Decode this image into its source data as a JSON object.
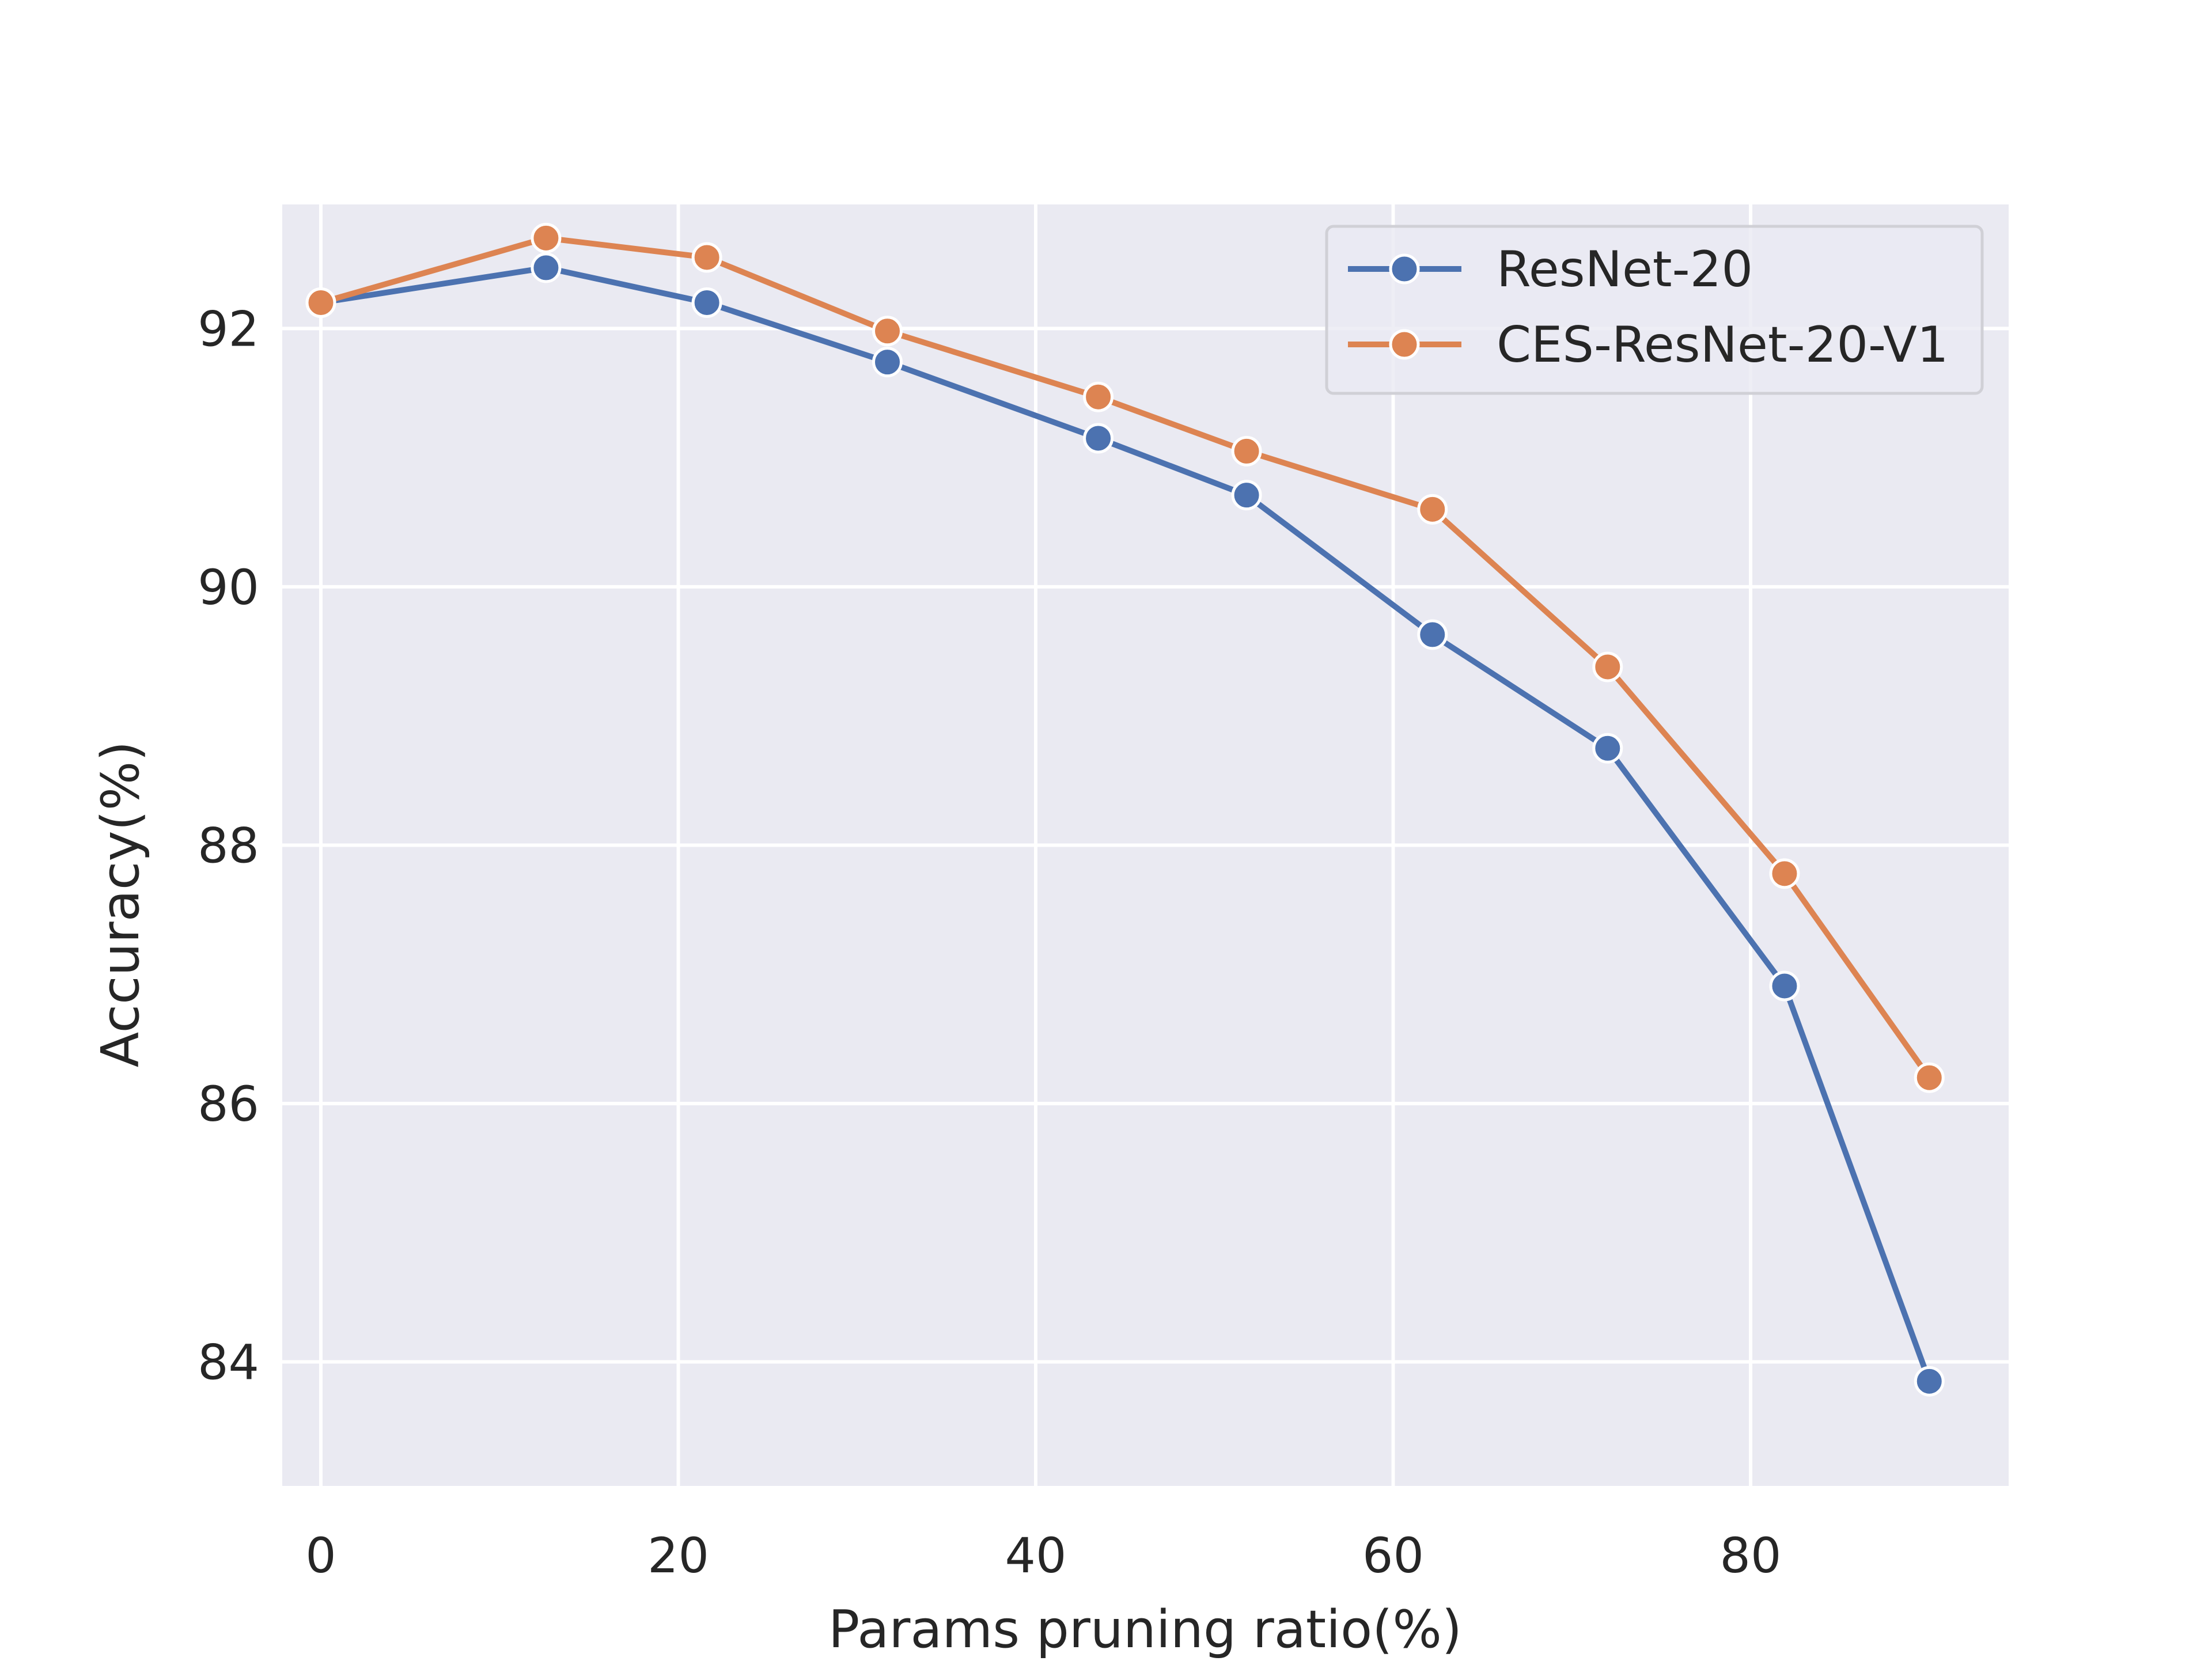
{
  "chart_data": {
    "type": "line",
    "title": "",
    "xlabel": "Params pruning ratio(%)",
    "ylabel": "Accuracy(%)",
    "xlim": [
      -2.16,
      94.44
    ],
    "ylim": [
      83.04,
      92.96
    ],
    "xticks": [
      0,
      20,
      40,
      60,
      80
    ],
    "yticks": [
      84,
      86,
      88,
      90,
      92
    ],
    "grid": true,
    "legend_position": "upper right",
    "colors": {
      "background": "#eaeaf2",
      "grid": "#ffffff",
      "text": "#262626"
    },
    "series": [
      {
        "name": "ResNet-20",
        "color": "#4c72b0",
        "marker": "circle",
        "x": [
          0,
          12.6,
          21.6,
          31.7,
          43.5,
          51.8,
          62.2,
          72.0,
          81.9,
          90.0
        ],
        "y": [
          92.2,
          92.47,
          92.2,
          91.74,
          91.15,
          90.71,
          89.63,
          88.75,
          86.91,
          83.85
        ]
      },
      {
        "name": "CES-ResNet-20-V1",
        "color": "#dd8452",
        "marker": "circle",
        "x": [
          0,
          12.6,
          21.6,
          31.7,
          43.5,
          51.8,
          62.2,
          72.0,
          81.9,
          90.0
        ],
        "y": [
          92.2,
          92.7,
          92.55,
          91.98,
          91.47,
          91.05,
          90.6,
          89.38,
          87.78,
          86.2
        ]
      }
    ]
  }
}
